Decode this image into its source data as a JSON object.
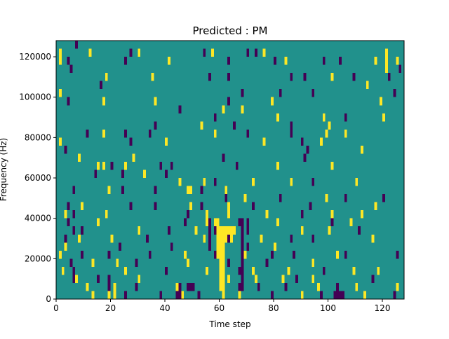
{
  "colors": {
    "background": "#21918c",
    "negative": "#440154",
    "positive": "#fde725",
    "axis": "#000000"
  },
  "chart_data": {
    "type": "heatmap",
    "title": "Predicted : PM",
    "xlabel": "Time step",
    "ylabel": "Frequency (Hz)",
    "xlim": [
      0,
      128
    ],
    "ylim": [
      0,
      128000
    ],
    "x_ticks": [
      0,
      20,
      40,
      60,
      80,
      100,
      120
    ],
    "y_ticks": [
      0,
      20000,
      40000,
      60000,
      80000,
      100000,
      120000
    ],
    "y_tick_labels": [
      "0",
      "20000",
      "40000",
      "60000",
      "80000",
      "100000",
      "120000"
    ],
    "background_value": 0,
    "value_levels": {
      "-1": "dark purple",
      "0": "teal",
      "1": "yellow"
    },
    "bin_height": 4000,
    "cells": [
      [
        7,
        124000,
        -1
      ],
      [
        1,
        120000,
        1
      ],
      [
        12,
        120000,
        1
      ],
      [
        27,
        120000,
        -1
      ],
      [
        30,
        120000,
        1
      ],
      [
        54,
        120000,
        -1
      ],
      [
        57,
        120000,
        1
      ],
      [
        70,
        120000,
        -1
      ],
      [
        73,
        120000,
        -1
      ],
      [
        76,
        120000,
        1
      ],
      [
        1,
        116000,
        1
      ],
      [
        4,
        116000,
        -1
      ],
      [
        25,
        116000,
        -1
      ],
      [
        41,
        116000,
        1
      ],
      [
        63,
        116000,
        -1
      ],
      [
        80,
        116000,
        -1
      ],
      [
        84,
        116000,
        1
      ],
      [
        98,
        116000,
        -1
      ],
      [
        104,
        116000,
        -1
      ],
      [
        117,
        116000,
        1
      ],
      [
        125,
        116000,
        1
      ],
      [
        5,
        112000,
        -1
      ],
      [
        126,
        112000,
        -1
      ],
      [
        18,
        108000,
        1
      ],
      [
        35,
        108000,
        1
      ],
      [
        56,
        108000,
        -1
      ],
      [
        63,
        108000,
        -1
      ],
      [
        86,
        108000,
        -1
      ],
      [
        91,
        108000,
        -1
      ],
      [
        101,
        108000,
        1
      ],
      [
        109,
        108000,
        -1
      ],
      [
        16,
        104000,
        -1
      ],
      [
        114,
        104000,
        1
      ],
      [
        1,
        100000,
        1
      ],
      [
        68,
        100000,
        -1
      ],
      [
        82,
        100000,
        -1
      ],
      [
        94,
        100000,
        -1
      ],
      [
        124,
        100000,
        -1
      ],
      [
        4,
        96000,
        -1
      ],
      [
        17,
        96000,
        1
      ],
      [
        36,
        96000,
        1
      ],
      [
        63,
        96000,
        -1
      ],
      [
        79,
        96000,
        1
      ],
      [
        119,
        96000,
        1
      ],
      [
        45,
        92000,
        -1
      ],
      [
        61,
        92000,
        1
      ],
      [
        68,
        92000,
        1
      ],
      [
        58,
        88000,
        -1
      ],
      [
        81,
        88000,
        1
      ],
      [
        98,
        88000,
        1
      ],
      [
        106,
        88000,
        -1
      ],
      [
        120,
        88000,
        1
      ],
      [
        36,
        84000,
        -1
      ],
      [
        53,
        84000,
        1
      ],
      [
        65,
        84000,
        -1
      ],
      [
        86,
        84000,
        -1
      ],
      [
        100,
        84000,
        1
      ],
      [
        1,
        76000,
        1
      ],
      [
        11,
        80000,
        -1
      ],
      [
        17,
        80000,
        1
      ],
      [
        25,
        80000,
        -1
      ],
      [
        34,
        80000,
        -1
      ],
      [
        58,
        80000,
        1
      ],
      [
        70,
        80000,
        -1
      ],
      [
        86,
        80000,
        -1
      ],
      [
        99,
        80000,
        1
      ],
      [
        106,
        80000,
        1
      ],
      [
        3,
        72000,
        -1
      ],
      [
        27,
        76000,
        -1
      ],
      [
        40,
        76000,
        1
      ],
      [
        76,
        76000,
        1
      ],
      [
        90,
        76000,
        -1
      ],
      [
        97,
        76000,
        1
      ],
      [
        8,
        68000,
        1
      ],
      [
        28,
        68000,
        1
      ],
      [
        61,
        68000,
        -1
      ],
      [
        91,
        68000,
        -1
      ],
      [
        92,
        72000,
        -1
      ],
      [
        112,
        72000,
        1
      ],
      [
        15,
        64000,
        1
      ],
      [
        17,
        64000,
        1
      ],
      [
        20,
        64000,
        -1
      ],
      [
        25,
        64000,
        1
      ],
      [
        38,
        64000,
        -1
      ],
      [
        42,
        64000,
        -1
      ],
      [
        66,
        64000,
        -1
      ],
      [
        81,
        64000,
        1
      ],
      [
        101,
        64000,
        1
      ],
      [
        14,
        60000,
        -1
      ],
      [
        32,
        60000,
        1
      ],
      [
        40,
        60000,
        -1
      ],
      [
        45,
        56000,
        1
      ],
      [
        54,
        56000,
        1
      ],
      [
        58,
        56000,
        -1
      ],
      [
        72,
        56000,
        1
      ],
      [
        86,
        56000,
        1
      ],
      [
        94,
        56000,
        -1
      ],
      [
        110,
        56000,
        1
      ],
      [
        6,
        52000,
        -1
      ],
      [
        19,
        52000,
        1
      ],
      [
        24,
        52000,
        -1
      ],
      [
        36,
        52000,
        -1
      ],
      [
        48,
        52000,
        1
      ],
      [
        49,
        52000,
        1
      ],
      [
        53,
        52000,
        -1
      ],
      [
        62,
        52000,
        1
      ],
      [
        62,
        48000,
        -1
      ],
      [
        69,
        48000,
        1
      ],
      [
        82,
        48000,
        -1
      ],
      [
        99,
        48000,
        1
      ],
      [
        106,
        48000,
        -1
      ],
      [
        120,
        48000,
        -1
      ],
      [
        4,
        44000,
        -1
      ],
      [
        9,
        44000,
        1
      ],
      [
        27,
        44000,
        -1
      ],
      [
        36,
        44000,
        -1
      ],
      [
        49,
        44000,
        1
      ],
      [
        53,
        44000,
        -1
      ],
      [
        63,
        44000,
        1
      ],
      [
        72,
        44000,
        -1
      ],
      [
        93,
        44000,
        -1
      ],
      [
        117,
        44000,
        1
      ],
      [
        3,
        40000,
        1
      ],
      [
        6,
        40000,
        -1
      ],
      [
        18,
        40000,
        1
      ],
      [
        48,
        40000,
        -1
      ],
      [
        55,
        40000,
        1
      ],
      [
        63,
        40000,
        1
      ],
      [
        77,
        40000,
        1
      ],
      [
        90,
        40000,
        -1
      ],
      [
        101,
        40000,
        1
      ],
      [
        112,
        40000,
        1
      ],
      [
        4,
        36000,
        -1
      ],
      [
        15,
        36000,
        1
      ],
      [
        47,
        36000,
        -1
      ],
      [
        55,
        36000,
        1
      ],
      [
        58,
        36000,
        1
      ],
      [
        67,
        36000,
        -1
      ],
      [
        81,
        36000,
        1
      ],
      [
        101,
        36000,
        -1
      ],
      [
        108,
        36000,
        1
      ],
      [
        6,
        32000,
        -1
      ],
      [
        9,
        32000,
        -1
      ],
      [
        30,
        32000,
        1
      ],
      [
        41,
        32000,
        -1
      ],
      [
        51,
        32000,
        1
      ],
      [
        58,
        32000,
        -1
      ],
      [
        65,
        32000,
        1
      ],
      [
        70,
        32000,
        -1
      ],
      [
        90,
        32000,
        1
      ],
      [
        100,
        32000,
        1
      ],
      [
        111,
        32000,
        -1
      ],
      [
        3,
        28000,
        -1
      ],
      [
        8,
        28000,
        1
      ],
      [
        20,
        28000,
        1
      ],
      [
        33,
        28000,
        -1
      ],
      [
        54,
        28000,
        1
      ],
      [
        63,
        28000,
        -1
      ],
      [
        75,
        28000,
        1
      ],
      [
        86,
        28000,
        -1
      ],
      [
        94,
        28000,
        -1
      ],
      [
        116,
        28000,
        1
      ],
      [
        3,
        24000,
        1
      ],
      [
        23,
        24000,
        -1
      ],
      [
        42,
        24000,
        -1
      ],
      [
        70,
        24000,
        -1
      ],
      [
        80,
        24000,
        1
      ],
      [
        1,
        20000,
        1
      ],
      [
        9,
        20000,
        -1
      ],
      [
        19,
        20000,
        -1
      ],
      [
        34,
        20000,
        -1
      ],
      [
        47,
        20000,
        1
      ],
      [
        58,
        20000,
        -1
      ],
      [
        69,
        20000,
        1
      ],
      [
        79,
        20000,
        -1
      ],
      [
        87,
        20000,
        -1
      ],
      [
        103,
        20000,
        1
      ],
      [
        106,
        20000,
        -1
      ],
      [
        125,
        20000,
        -1
      ],
      [
        5,
        16000,
        -1
      ],
      [
        13,
        16000,
        1
      ],
      [
        22,
        16000,
        1
      ],
      [
        29,
        16000,
        -1
      ],
      [
        48,
        16000,
        1
      ],
      [
        63,
        16000,
        -1
      ],
      [
        77,
        16000,
        -1
      ],
      [
        94,
        16000,
        1
      ],
      [
        2,
        12000,
        1
      ],
      [
        25,
        12000,
        1
      ],
      [
        40,
        12000,
        -1
      ],
      [
        55,
        12000,
        1
      ],
      [
        67,
        12000,
        -1
      ],
      [
        72,
        12000,
        1
      ],
      [
        85,
        12000,
        1
      ],
      [
        98,
        12000,
        -1
      ],
      [
        109,
        12000,
        1
      ],
      [
        118,
        12000,
        1
      ],
      [
        7,
        8000,
        1
      ],
      [
        15,
        8000,
        -1
      ],
      [
        30,
        8000,
        1
      ],
      [
        63,
        8000,
        1
      ],
      [
        73,
        8000,
        1
      ],
      [
        83,
        8000,
        1
      ],
      [
        88,
        8000,
        -1
      ],
      [
        94,
        8000,
        1
      ],
      [
        116,
        8000,
        -1
      ],
      [
        11,
        4000,
        1
      ],
      [
        29,
        4000,
        -1
      ],
      [
        44,
        4000,
        1
      ],
      [
        67,
        4000,
        -1
      ],
      [
        74,
        4000,
        -1
      ],
      [
        84,
        4000,
        -1
      ],
      [
        96,
        4000,
        1
      ],
      [
        110,
        4000,
        1
      ],
      [
        125,
        4000,
        1
      ],
      [
        13,
        0,
        1
      ],
      [
        19,
        0,
        1
      ],
      [
        25,
        0,
        -1
      ],
      [
        38,
        0,
        -1
      ],
      [
        52,
        0,
        -1
      ],
      [
        67,
        0,
        1
      ],
      [
        79,
        0,
        -1
      ],
      [
        90,
        0,
        1
      ],
      [
        97,
        0,
        -1
      ],
      [
        113,
        0,
        1
      ],
      [
        124,
        0,
        -1
      ]
    ],
    "runs": [
      [
        6,
        1,
        12000,
        16000,
        -1
      ],
      [
        6,
        2,
        8000,
        12000,
        -1
      ],
      [
        14,
        1,
        60000,
        64000,
        1
      ],
      [
        19,
        1,
        0,
        12000,
        -1
      ],
      [
        21,
        1,
        0,
        8000,
        1
      ],
      [
        24,
        1,
        60000,
        64000,
        -1
      ],
      [
        44,
        2,
        0,
        8000,
        -1
      ],
      [
        46,
        1,
        0,
        4000,
        1
      ],
      [
        48,
        3,
        4000,
        8000,
        -1
      ],
      [
        56,
        1,
        24000,
        40000,
        -1
      ],
      [
        59,
        1,
        20000,
        40000,
        1
      ],
      [
        60,
        2,
        4000,
        36000,
        1
      ],
      [
        61,
        1,
        0,
        8000,
        1
      ],
      [
        62,
        1,
        28000,
        36000,
        1
      ],
      [
        63,
        2,
        28000,
        36000,
        1
      ],
      [
        68,
        1,
        4000,
        40000,
        -1
      ],
      [
        70,
        1,
        32000,
        40000,
        -1
      ],
      [
        102,
        4,
        0,
        4000,
        -1
      ],
      [
        103,
        1,
        4000,
        8000,
        -1
      ],
      [
        121,
        1,
        112000,
        124000,
        1
      ],
      [
        122,
        1,
        108000,
        112000,
        -1
      ]
    ]
  }
}
